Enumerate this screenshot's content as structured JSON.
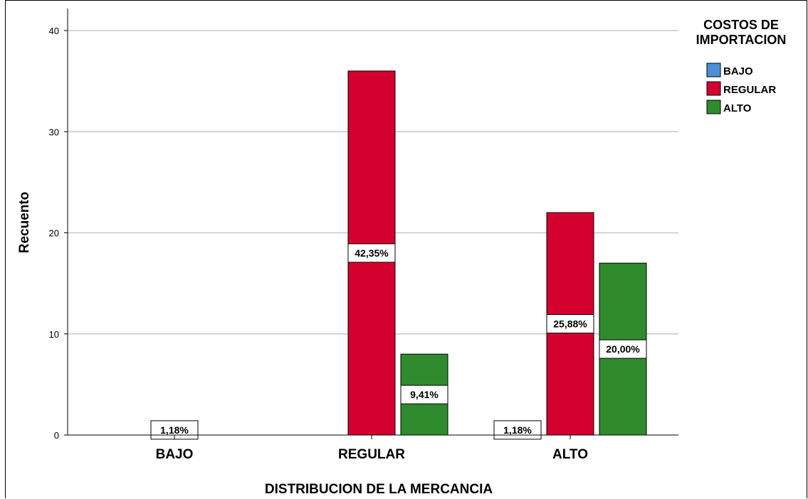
{
  "chart_data": {
    "type": "bar",
    "title": "",
    "xlabel": "DISTRIBUCION DE LA MERCANCIA",
    "ylabel": "Recuento",
    "ylim": [
      0,
      42
    ],
    "yticks": [
      0,
      10,
      20,
      30,
      40
    ],
    "grid": true,
    "legend_position": "top-right",
    "categories": [
      "BAJO",
      "REGULAR",
      "ALTO"
    ],
    "legend": {
      "title_lines": [
        "COSTOS DE",
        "IMPORTACION"
      ]
    },
    "series": [
      {
        "name": "BAJO",
        "color": "#4a90d9",
        "values": [
          0,
          0,
          1
        ],
        "labels": [
          "",
          "",
          "1,18%"
        ]
      },
      {
        "name": "REGULAR",
        "color": "#d4002e",
        "values": [
          1,
          36,
          22
        ],
        "labels": [
          "1,18%",
          "42,35%",
          "25,88%"
        ]
      },
      {
        "name": "ALTO",
        "color": "#2e8b2e",
        "values": [
          0,
          8,
          17
        ],
        "labels": [
          "",
          "9,41%",
          "20,00%"
        ]
      }
    ]
  }
}
